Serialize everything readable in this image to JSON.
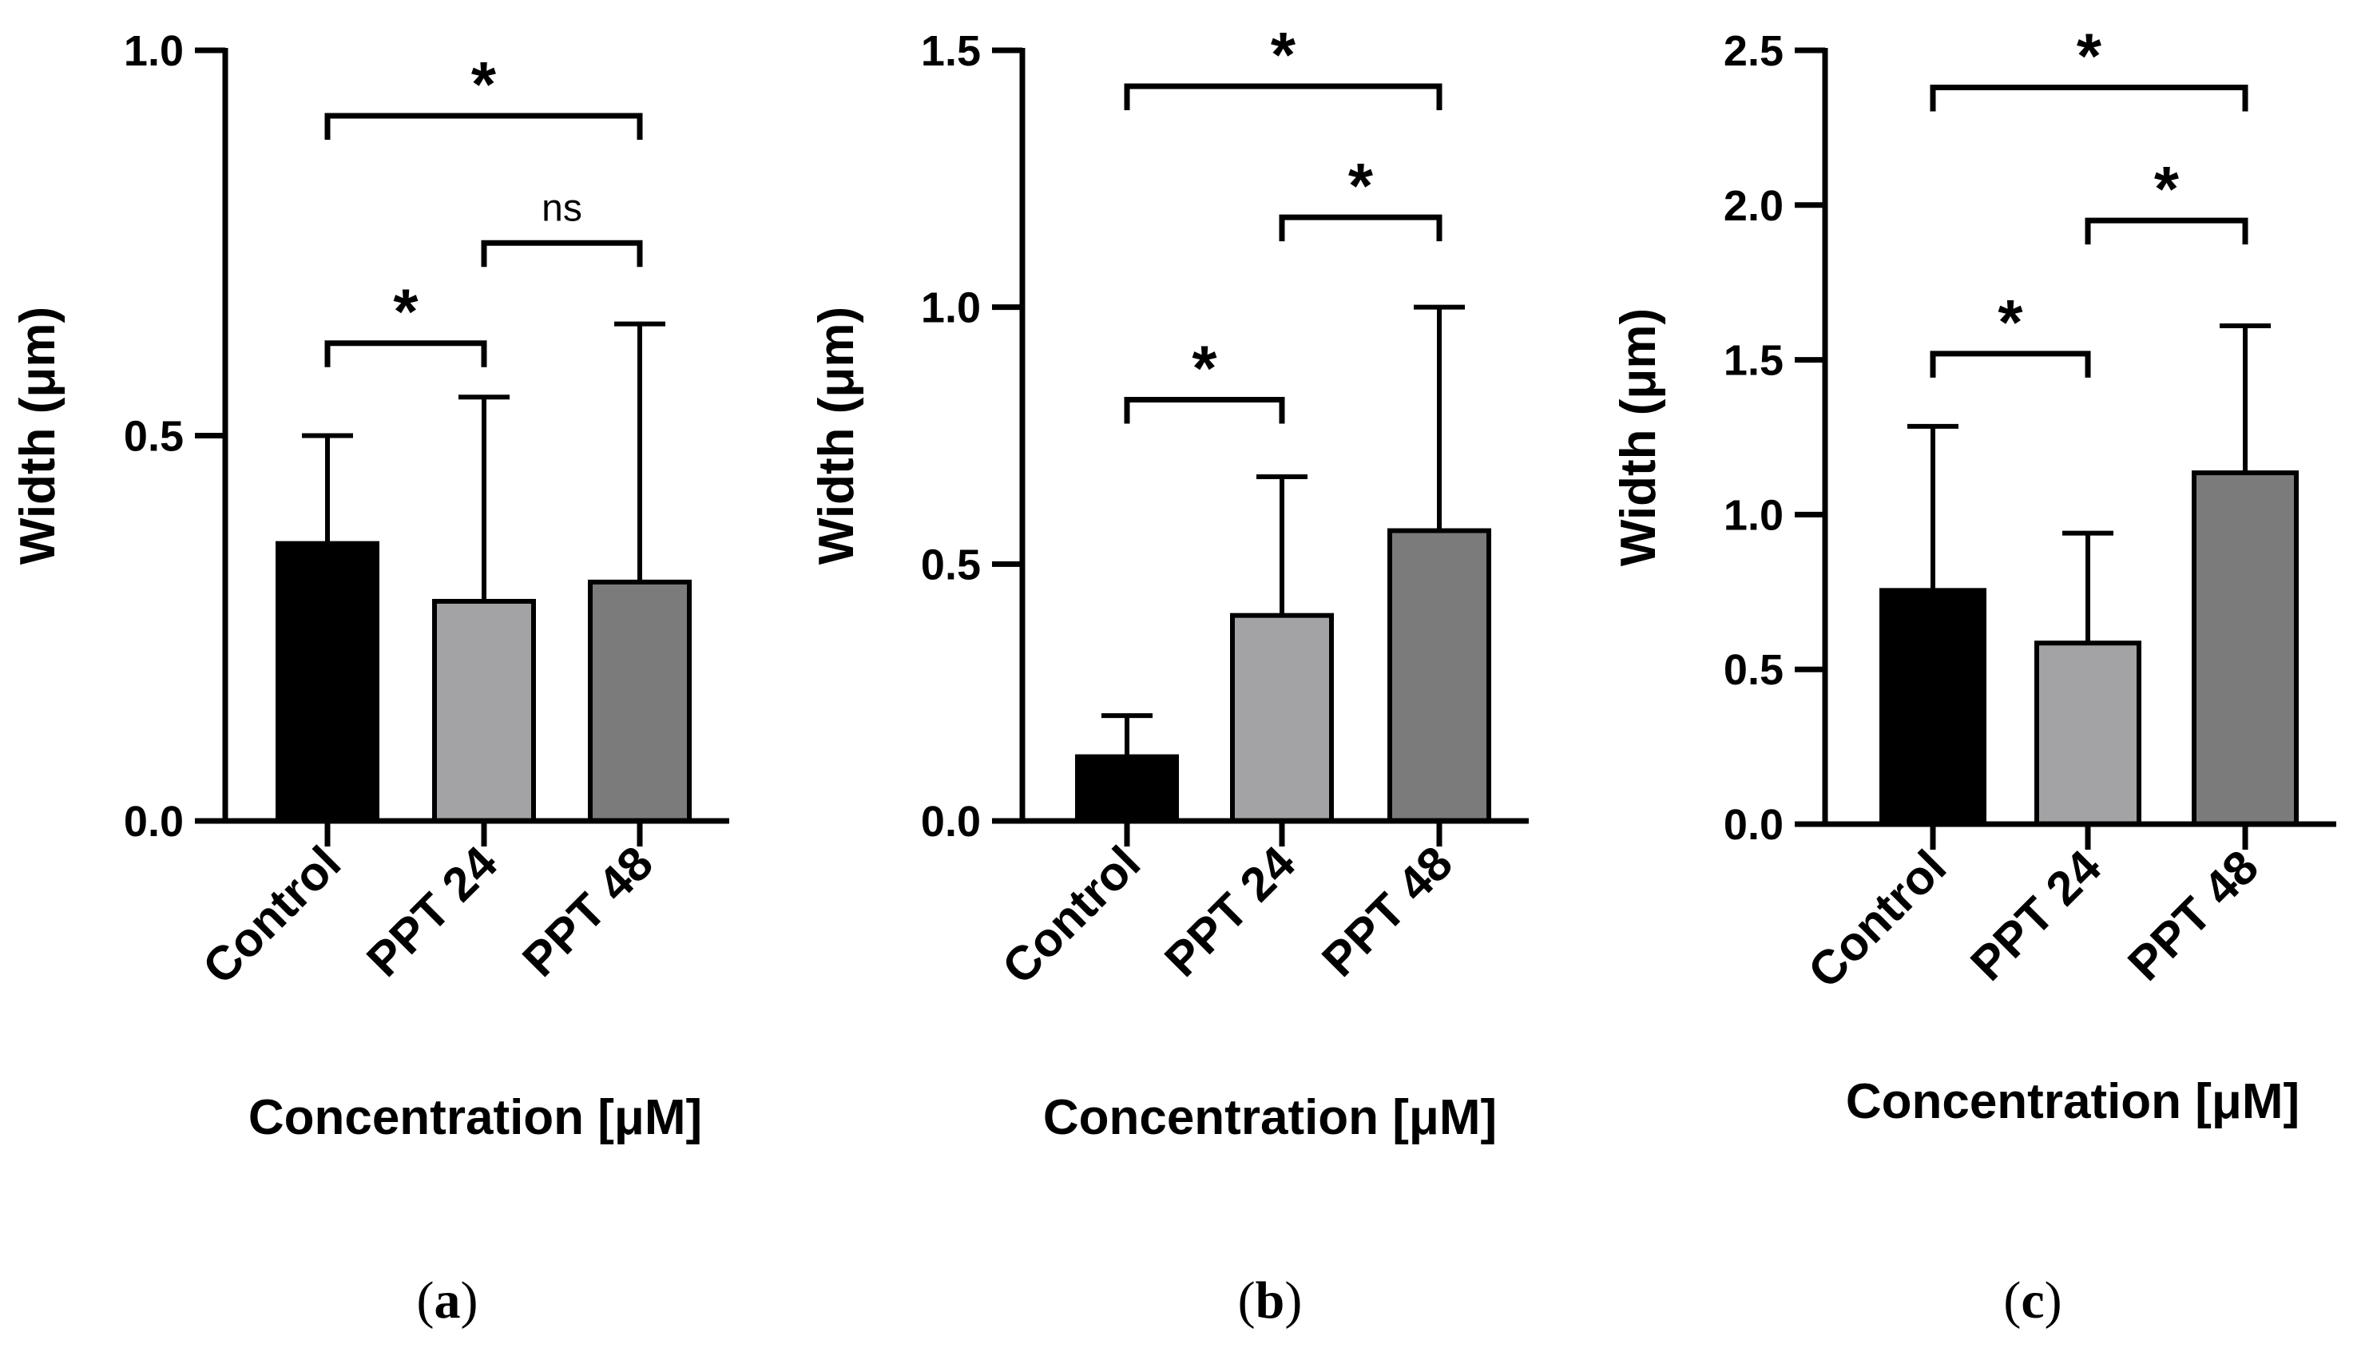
{
  "figure": {
    "colors": {
      "axis": "#000000",
      "bars": [
        "#000000",
        "#a3a3a6",
        "#7b7b7b"
      ],
      "bar_stroke": "#000000"
    }
  },
  "chart_data": [
    {
      "type": "bar",
      "panel_label": "a",
      "categories": [
        "Control",
        "PPT 24",
        "PPT 48"
      ],
      "values": [
        0.36,
        0.285,
        0.31
      ],
      "error_upper": [
        0.5,
        0.55,
        0.645
      ],
      "ylabel": "Width (μm)",
      "xlabel": "Concentration [μM]",
      "ylim": [
        0,
        1.0
      ],
      "yticks": [
        0.0,
        0.5,
        1.0
      ],
      "ytick_labels": [
        "0.0",
        "0.5",
        "1.0"
      ],
      "significance": [
        {
          "from": 0,
          "to": 1,
          "label": "*",
          "y": 0.62
        },
        {
          "from": 1,
          "to": 2,
          "label": "ns",
          "y": 0.75
        },
        {
          "from": 0,
          "to": 2,
          "label": "*",
          "y": 0.915
        }
      ]
    },
    {
      "type": "bar",
      "panel_label": "b",
      "categories": [
        "Control",
        "PPT 24",
        "PPT 48"
      ],
      "values": [
        0.125,
        0.4,
        0.565
      ],
      "error_upper": [
        0.205,
        0.67,
        1.0
      ],
      "ylabel": "Width (μm)",
      "xlabel": "Concentration [μM]",
      "ylim": [
        0,
        1.5
      ],
      "yticks": [
        0.0,
        0.5,
        1.0,
        1.5
      ],
      "ytick_labels": [
        "0.0",
        "0.5",
        "1.0",
        "1.5"
      ],
      "significance": [
        {
          "from": 0,
          "to": 1,
          "label": "*",
          "y": 0.82
        },
        {
          "from": 1,
          "to": 2,
          "label": "*",
          "y": 1.175
        },
        {
          "from": 0,
          "to": 2,
          "label": "*",
          "y": 1.43
        }
      ]
    },
    {
      "type": "bar",
      "panel_label": "c",
      "categories": [
        "Control",
        "PPT 24",
        "PPT 48"
      ],
      "values": [
        0.755,
        0.585,
        1.135
      ],
      "error_upper": [
        1.285,
        0.94,
        1.61
      ],
      "ylabel": "Width (μm)",
      "xlabel": "Concentration [μM]",
      "ylim": [
        0,
        2.5
      ],
      "yticks": [
        0.0,
        0.5,
        1.0,
        1.5,
        2.0,
        2.5
      ],
      "ytick_labels": [
        "0.0",
        "0.5",
        "1.0",
        "1.5",
        "2.0",
        "2.5"
      ],
      "significance": [
        {
          "from": 0,
          "to": 1,
          "label": "*",
          "y": 1.52
        },
        {
          "from": 1,
          "to": 2,
          "label": "*",
          "y": 1.95
        },
        {
          "from": 0,
          "to": 2,
          "label": "*",
          "y": 2.38
        }
      ]
    }
  ]
}
